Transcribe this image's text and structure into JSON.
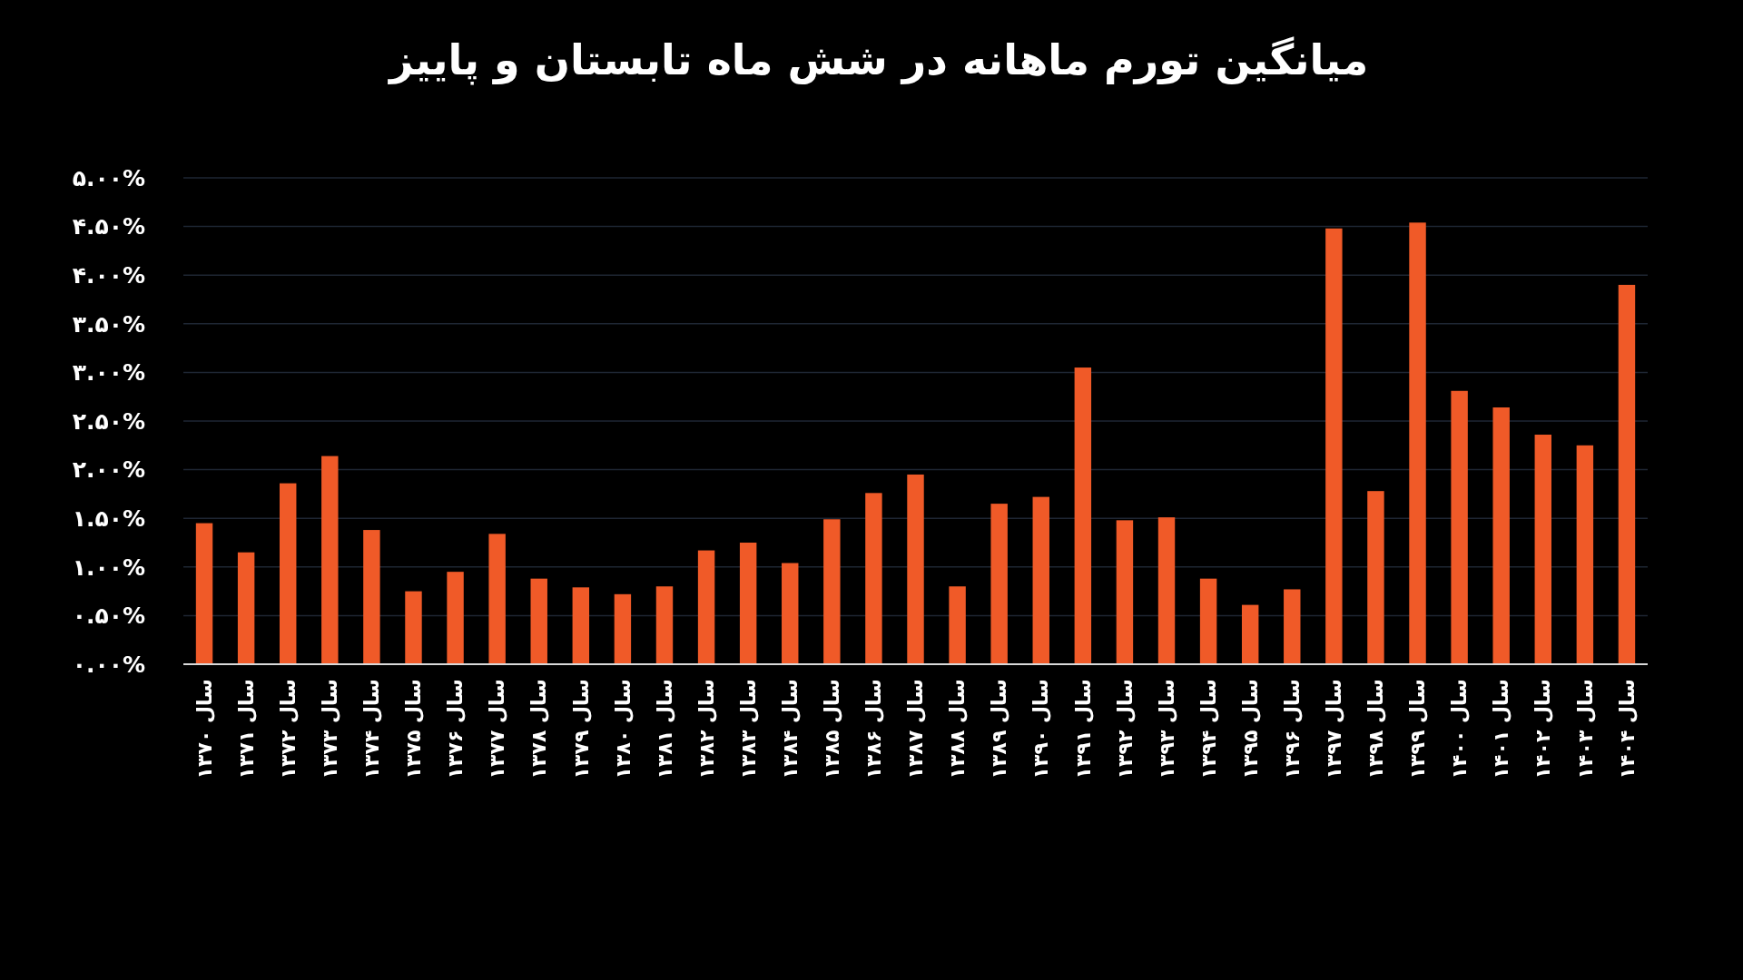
{
  "chart_data": {
    "type": "bar",
    "title": "میانگین تورم ماهانه در شش ماه تابستان و پاییز",
    "categories": [
      "سال ۱۳۷۰",
      "سال ۱۳۷۱",
      "سال ۱۳۷۲",
      "سال ۱۳۷۳",
      "سال ۱۳۷۴",
      "سال ۱۳۷۵",
      "سال ۱۳۷۶",
      "سال ۱۳۷۷",
      "سال ۱۳۷۸",
      "سال ۱۳۷۹",
      "سال ۱۳۸۰",
      "سال ۱۳۸۱",
      "سال ۱۳۸۲",
      "سال ۱۳۸۳",
      "سال ۱۳۸۴",
      "سال ۱۳۸۵",
      "سال ۱۳۸۶",
      "سال ۱۳۸۷",
      "سال ۱۳۸۸",
      "سال ۱۳۸۹",
      "سال ۱۳۹۰",
      "سال ۱۳۹۱",
      "سال ۱۳۹۲",
      "سال ۱۳۹۳",
      "سال ۱۳۹۴",
      "سال ۱۳۹۵",
      "سال ۱۳۹۶",
      "سال ۱۳۹۷",
      "سال ۱۳۹۸",
      "سال ۱۳۹۹",
      "سال ۱۴۰۰",
      "سال ۱۴۰۱",
      "سال ۱۴۰۲",
      "سال ۱۴۰۳",
      "سال ۱۴۰۴"
    ],
    "values": [
      1.45,
      1.15,
      1.86,
      2.14,
      1.38,
      0.75,
      0.95,
      1.34,
      0.88,
      0.79,
      0.72,
      0.8,
      1.17,
      1.25,
      1.04,
      1.49,
      1.76,
      1.95,
      0.8,
      1.65,
      1.72,
      3.05,
      1.48,
      1.51,
      0.88,
      0.61,
      0.77,
      4.48,
      1.78,
      4.54,
      2.81,
      2.64,
      2.36,
      2.25,
      3.9
    ],
    "color": "#f05a28",
    "ylim": [
      0,
      5
    ],
    "yticks": [
      {
        "value": 0,
        "label": "۰.۰۰%"
      },
      {
        "value": 0.5,
        "label": "۰.۵۰%"
      },
      {
        "value": 1,
        "label": "۱.۰۰%"
      },
      {
        "value": 1.5,
        "label": "۱.۵۰%"
      },
      {
        "value": 2,
        "label": "۲.۰۰%"
      },
      {
        "value": 2.5,
        "label": "۲.۵۰%"
      },
      {
        "value": 3,
        "label": "۳.۰۰%"
      },
      {
        "value": 3.5,
        "label": "۳.۵۰%"
      },
      {
        "value": 4,
        "label": "۴.۰۰%"
      },
      {
        "value": 4.5,
        "label": "۴.۵۰%"
      },
      {
        "value": 5,
        "label": "۵.۰۰%"
      }
    ],
    "grid": "y"
  }
}
